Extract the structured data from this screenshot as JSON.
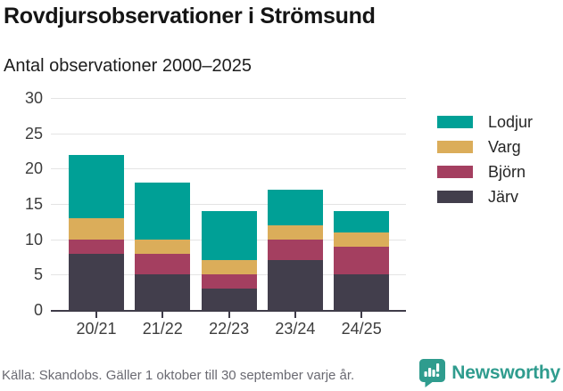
{
  "title": "Rovdjursobservationer i Strömsund",
  "subtitle": "Antal observationer 2000–2025",
  "source": "Källa: Skandobs. Gäller 1 oktober till 30 september varje år.",
  "brand": {
    "name": "Newsworthy",
    "color": "#2F9C8E"
  },
  "chart_data": {
    "type": "bar",
    "stacked": true,
    "title": "Rovdjursobservationer i Strömsund",
    "subtitle": "Antal observationer 2000–2025",
    "categories": [
      "20/21",
      "21/22",
      "22/23",
      "23/24",
      "24/25"
    ],
    "series": [
      {
        "name": "Järv",
        "color": "#423E4C",
        "values": [
          8,
          5,
          3,
          7,
          5
        ]
      },
      {
        "name": "Björn",
        "color": "#A43F60",
        "values": [
          2,
          3,
          2,
          3,
          4
        ]
      },
      {
        "name": "Varg",
        "color": "#DBAD5A",
        "values": [
          3,
          2,
          2,
          2,
          2
        ]
      },
      {
        "name": "Lodjur",
        "color": "#00A096",
        "values": [
          9,
          8,
          7,
          5,
          3
        ]
      }
    ],
    "totals": [
      22,
      18,
      14,
      17,
      14
    ],
    "xlabel": "",
    "ylabel": "",
    "ylim": [
      0,
      30
    ],
    "yticks": [
      0,
      5,
      10,
      15,
      20,
      25,
      30
    ],
    "grid": true,
    "legend_position": "right",
    "legend_order": [
      "Lodjur",
      "Varg",
      "Björn",
      "Järv"
    ],
    "axis_color": "#3F3C49",
    "gridline_color": "#E4E4E4"
  }
}
